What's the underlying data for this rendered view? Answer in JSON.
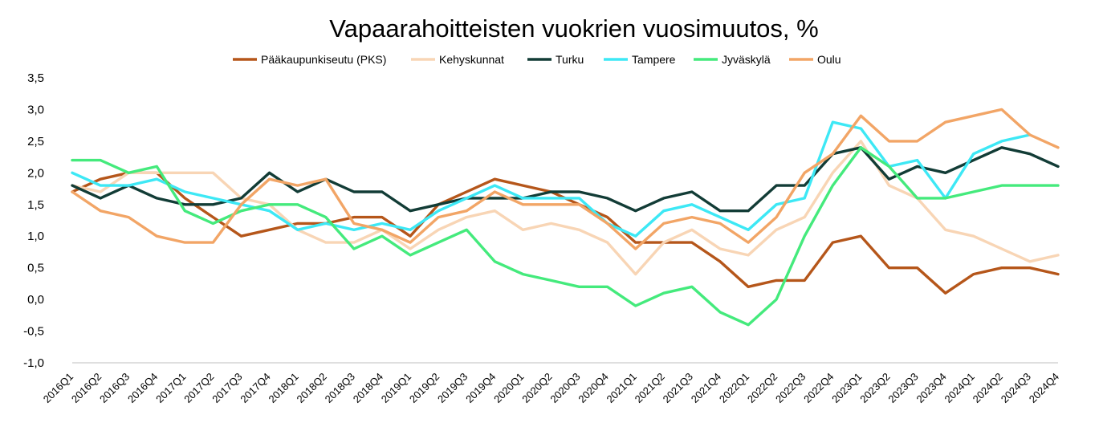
{
  "chart_data": {
    "type": "line",
    "title": "Vapaarahoitteisten vuokrien vuosimuutos, %",
    "xlabel": "",
    "ylabel": "",
    "ylim": [
      -1.0,
      3.5
    ],
    "ytick_step": 0.5,
    "grid": false,
    "legend_position": "top",
    "categories": [
      "2016Q1",
      "2016Q2",
      "2016Q3",
      "2016Q4",
      "2017Q1",
      "2017Q2",
      "2017Q3",
      "2017Q4",
      "2018Q1",
      "2018Q2",
      "2018Q3",
      "2018Q4",
      "2019Q1",
      "2019Q2",
      "2019Q3",
      "2019Q4",
      "2020Q1",
      "2020Q2",
      "2020Q3",
      "2020Q4",
      "2021Q1",
      "2021Q2",
      "2021Q3",
      "2021Q4",
      "2022Q1",
      "2022Q2",
      "2022Q3",
      "2022Q4",
      "2023Q1",
      "2023Q2",
      "2023Q3",
      "2023Q4",
      "2024Q1",
      "2024Q2",
      "2024Q3",
      "2024Q4"
    ],
    "yticks": [
      "3,5",
      "3,0",
      "2,5",
      "2,0",
      "1,5",
      "1,0",
      "0,5",
      "0,0",
      "-0,5",
      "-1,0"
    ],
    "series": [
      {
        "name": "Pääkaupunkiseutu (PKS)",
        "color": "#b5561a",
        "values": [
          1.7,
          1.9,
          2.0,
          2.0,
          1.6,
          1.3,
          1.0,
          1.1,
          1.2,
          1.2,
          1.3,
          1.3,
          1.0,
          1.5,
          1.7,
          1.9,
          1.8,
          1.7,
          1.5,
          1.3,
          0.9,
          0.9,
          0.9,
          0.6,
          0.2,
          0.3,
          0.3,
          0.9,
          1.0,
          0.5,
          0.5,
          0.1,
          0.4,
          0.5,
          0.5,
          0.4
        ]
      },
      {
        "name": "Kehyskunnat",
        "color": "#f8d5b5",
        "values": [
          1.8,
          1.7,
          2.0,
          2.0,
          2.0,
          2.0,
          1.6,
          1.5,
          1.1,
          0.9,
          0.9,
          1.1,
          0.8,
          1.1,
          1.3,
          1.4,
          1.1,
          1.2,
          1.1,
          0.9,
          0.4,
          0.9,
          1.1,
          0.8,
          0.7,
          1.1,
          1.3,
          2.0,
          2.5,
          1.8,
          1.6,
          1.1,
          1.0,
          0.8,
          0.6,
          0.7
        ]
      },
      {
        "name": "Turku",
        "color": "#123c36",
        "values": [
          1.8,
          1.6,
          1.8,
          1.6,
          1.5,
          1.5,
          1.6,
          2.0,
          1.7,
          1.9,
          1.7,
          1.7,
          1.4,
          1.5,
          1.6,
          1.6,
          1.6,
          1.7,
          1.7,
          1.6,
          1.4,
          1.6,
          1.7,
          1.4,
          1.4,
          1.8,
          1.8,
          2.3,
          2.4,
          1.9,
          2.1,
          2.0,
          2.2,
          2.4,
          2.3,
          2.1
        ]
      },
      {
        "name": "Tampere",
        "color": "#3de8f5",
        "values": [
          2.0,
          1.8,
          1.8,
          1.9,
          1.7,
          1.6,
          1.5,
          1.4,
          1.1,
          1.2,
          1.1,
          1.2,
          1.1,
          1.4,
          1.6,
          1.8,
          1.6,
          1.6,
          1.6,
          1.2,
          1.0,
          1.4,
          1.5,
          1.3,
          1.1,
          1.5,
          1.6,
          2.8,
          2.7,
          2.1,
          2.2,
          1.6,
          2.3,
          2.5,
          2.6,
          null
        ]
      },
      {
        "name": "Jyväskylä",
        "color": "#44ea7c",
        "values": [
          2.2,
          2.2,
          2.0,
          2.1,
          1.4,
          1.2,
          1.4,
          1.5,
          1.5,
          1.3,
          0.8,
          1.0,
          0.7,
          0.9,
          1.1,
          0.6,
          0.4,
          0.3,
          0.2,
          0.2,
          -0.1,
          0.1,
          0.2,
          -0.2,
          -0.4,
          0.0,
          1.0,
          1.8,
          2.4,
          2.1,
          1.6,
          1.6,
          1.7,
          1.8,
          1.8,
          1.8
        ]
      },
      {
        "name": "Oulu",
        "color": "#f2a566",
        "values": [
          1.7,
          1.4,
          1.3,
          1.0,
          0.9,
          0.9,
          1.5,
          1.9,
          1.8,
          1.9,
          1.2,
          1.1,
          0.9,
          1.3,
          1.4,
          1.7,
          1.5,
          1.5,
          1.5,
          1.2,
          0.8,
          1.2,
          1.3,
          1.2,
          0.9,
          1.3,
          2.0,
          2.3,
          2.9,
          2.5,
          2.5,
          2.8,
          2.9,
          3.0,
          2.6,
          2.4
        ]
      }
    ]
  }
}
